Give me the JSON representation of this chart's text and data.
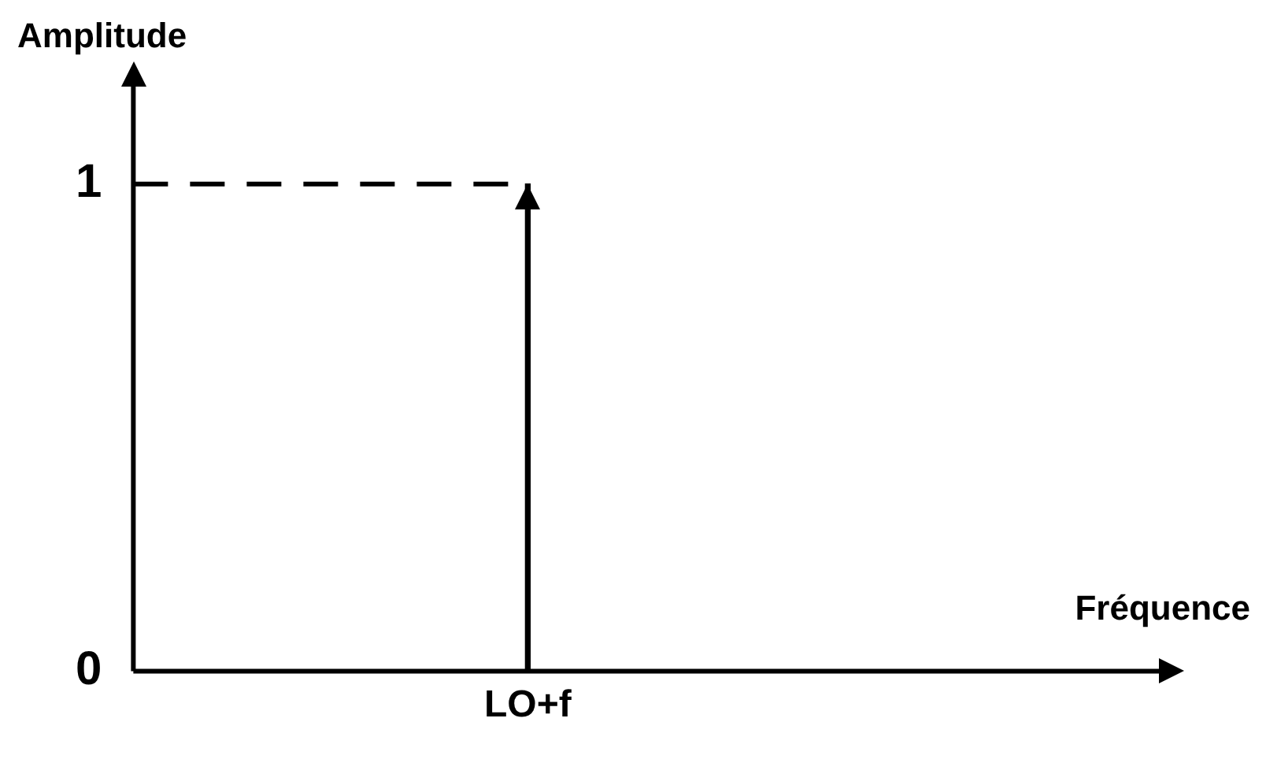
{
  "chart_data": {
    "type": "bar",
    "annotations": [
      "Fréquence"
    ],
    "ylabel": "Amplitude",
    "categories": [
      "LO+f"
    ],
    "values": [
      1
    ],
    "color": "#000000",
    "ylim": [
      0,
      1.2
    ],
    "yticks": [
      0,
      1
    ],
    "ref_lines": [
      {
        "axis": "y",
        "value": 1,
        "line_style": "dashed",
        "color": "#000000"
      }
    ],
    "grid": false,
    "legend": false
  }
}
